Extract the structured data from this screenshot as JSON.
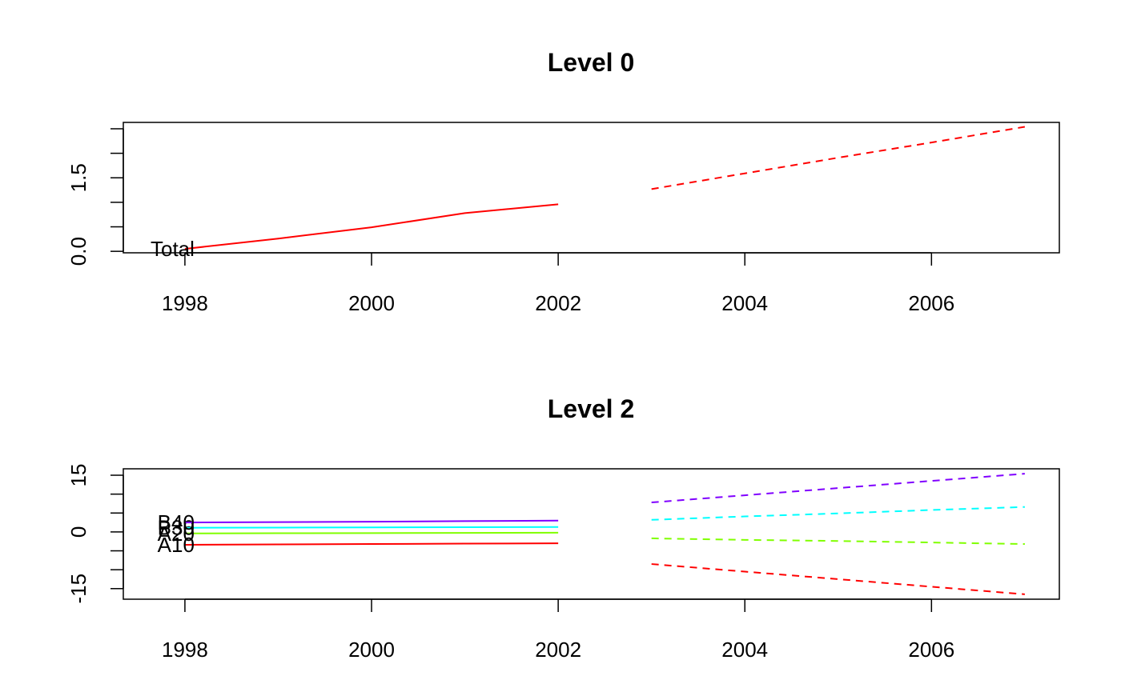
{
  "chart_data": [
    {
      "type": "line",
      "title": "Level 0",
      "x": [
        1998,
        1999,
        2000,
        2001,
        2002,
        2003,
        2004,
        2005,
        2006,
        2007
      ],
      "series": [
        {
          "name": "Total",
          "color": "#ff0000",
          "values": [
            0.05,
            0.26,
            0.49,
            0.78,
            0.96,
            null,
            null,
            null,
            null,
            null
          ],
          "forecast": [
            null,
            null,
            null,
            null,
            null,
            1.27,
            1.59,
            1.91,
            2.22,
            2.54
          ]
        }
      ],
      "xlim": [
        1997.34,
        2007.37
      ],
      "xticks": [
        1998,
        2000,
        2002,
        2004,
        2006
      ],
      "ylim": [
        -0.03,
        2.63
      ],
      "yticks": [
        {
          "value": 0,
          "label": "0.0"
        },
        {
          "value": 0.5,
          "label": null
        },
        {
          "value": 1,
          "label": null
        },
        {
          "value": 1.5,
          "label": "1.5"
        },
        {
          "value": 2,
          "label": null
        },
        {
          "value": 2.5,
          "label": null
        }
      ]
    },
    {
      "type": "line",
      "title": "Level 2",
      "x": [
        1998,
        1999,
        2000,
        2001,
        2002,
        2003,
        2004,
        2005,
        2006,
        2007
      ],
      "series": [
        {
          "name": "A10",
          "color": "#ff0000",
          "values": [
            -3.4,
            -3.3,
            -3.2,
            -3.1,
            -3.0,
            null,
            null,
            null,
            null,
            null
          ],
          "forecast": [
            null,
            null,
            null,
            null,
            null,
            -8.5,
            -10.5,
            -12.5,
            -14.5,
            -16.5
          ]
        },
        {
          "name": "A20",
          "color": "#80ff00",
          "values": [
            -0.4,
            -0.35,
            -0.3,
            -0.25,
            -0.2,
            null,
            null,
            null,
            null,
            null
          ],
          "forecast": [
            null,
            null,
            null,
            null,
            null,
            -1.7,
            -2.1,
            -2.4,
            -2.8,
            -3.2
          ]
        },
        {
          "name": "B30",
          "color": "#00ffff",
          "values": [
            1.1,
            1.15,
            1.2,
            1.25,
            1.3,
            null,
            null,
            null,
            null,
            null
          ],
          "forecast": [
            null,
            null,
            null,
            null,
            null,
            3.2,
            4.1,
            4.9,
            5.8,
            6.6
          ]
        },
        {
          "name": "B40",
          "color": "#8000ff",
          "values": [
            2.5,
            2.6,
            2.7,
            2.85,
            3.0,
            null,
            null,
            null,
            null,
            null
          ],
          "forecast": [
            null,
            null,
            null,
            null,
            null,
            7.8,
            9.7,
            11.6,
            13.5,
            15.4
          ]
        }
      ],
      "xlim": [
        1997.34,
        2007.37
      ],
      "xticks": [
        1998,
        2000,
        2002,
        2004,
        2006
      ],
      "ylim": [
        -17.8,
        16.7
      ],
      "yticks": [
        {
          "value": -15,
          "label": "-15"
        },
        {
          "value": -10,
          "label": null
        },
        {
          "value": -5,
          "label": null
        },
        {
          "value": 0,
          "label": "0"
        },
        {
          "value": 5,
          "label": null
        },
        {
          "value": 10,
          "label": null
        },
        {
          "value": 15,
          "label": "15"
        }
      ]
    }
  ]
}
